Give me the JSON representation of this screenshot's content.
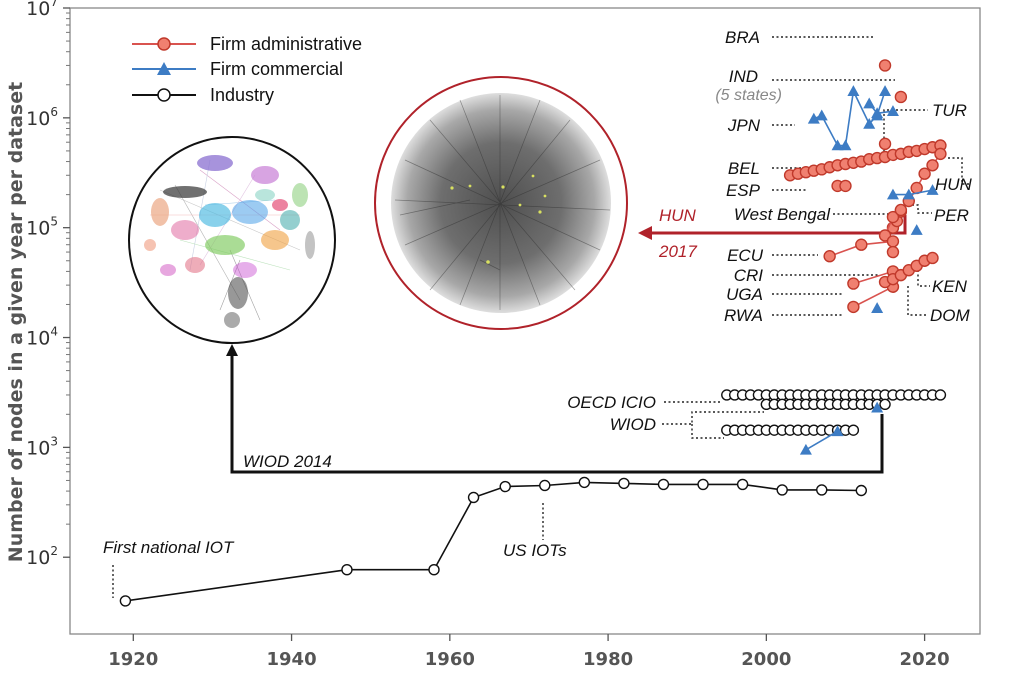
{
  "chart_data": {
    "type": "scatter",
    "title": "",
    "xlabel": "",
    "ylabel": "Number of nodes in a given year per dataset",
    "xlim": [
      1912,
      2027
    ],
    "ylim": [
      20,
      10000000
    ],
    "yscale": "log",
    "x_ticks": [
      1920,
      1940,
      1960,
      1980,
      2000,
      2020
    ],
    "y_ticks": [
      {
        "value": 100,
        "base": "10",
        "exp": "2"
      },
      {
        "value": 1000,
        "base": "10",
        "exp": "3"
      },
      {
        "value": 10000,
        "base": "10",
        "exp": "4"
      },
      {
        "value": 100000,
        "base": "10",
        "exp": "5"
      },
      {
        "value": 1000000,
        "base": "10",
        "exp": "6"
      },
      {
        "value": 10000000,
        "base": "10",
        "exp": "7"
      }
    ],
    "legend": {
      "placement": "top-left",
      "entries": [
        {
          "label": "Firm administrative",
          "marker": "circle",
          "color": "#d9534f",
          "fill": "#f08070"
        },
        {
          "label": "Firm commercial",
          "marker": "triangle",
          "color": "#3d7cc4",
          "fill": "#3d7cc4"
        },
        {
          "label": "Industry",
          "marker": "open-circle",
          "color": "#111111",
          "fill": "#ffffff"
        }
      ]
    },
    "series": [
      {
        "category": "Industry",
        "line": true,
        "points": [
          [
            1919,
            40
          ],
          [
            1947,
            77
          ],
          [
            1958,
            77
          ],
          [
            1963,
            350
          ],
          [
            1967,
            440
          ],
          [
            1972,
            450
          ],
          [
            1977,
            480
          ],
          [
            1982,
            470
          ],
          [
            1987,
            460
          ],
          [
            1992,
            460
          ],
          [
            1997,
            460
          ],
          [
            2002,
            410
          ],
          [
            2007,
            410
          ],
          [
            2012,
            405
          ]
        ]
      },
      {
        "category": "Industry",
        "line": true,
        "points": [
          [
            1995,
            3000
          ],
          [
            1996,
            3000
          ],
          [
            1997,
            3000
          ],
          [
            1998,
            3000
          ],
          [
            1999,
            3000
          ],
          [
            2000,
            3000
          ],
          [
            2001,
            3000
          ],
          [
            2002,
            3000
          ],
          [
            2003,
            3000
          ],
          [
            2004,
            3000
          ],
          [
            2005,
            3000
          ],
          [
            2006,
            3000
          ],
          [
            2007,
            3000
          ],
          [
            2008,
            3000
          ],
          [
            2009,
            3000
          ],
          [
            2010,
            3000
          ],
          [
            2011,
            3000
          ],
          [
            2012,
            3000
          ],
          [
            2013,
            3000
          ],
          [
            2014,
            3000
          ],
          [
            2015,
            3000
          ],
          [
            2016,
            3000
          ],
          [
            2017,
            3000
          ],
          [
            2018,
            3000
          ],
          [
            2019,
            3000
          ],
          [
            2020,
            3000
          ],
          [
            2021,
            3000
          ],
          [
            2022,
            3000
          ]
        ]
      },
      {
        "category": "Industry",
        "line": true,
        "points": [
          [
            2000,
            2464
          ],
          [
            2001,
            2464
          ],
          [
            2002,
            2464
          ],
          [
            2003,
            2464
          ],
          [
            2004,
            2464
          ],
          [
            2005,
            2464
          ],
          [
            2006,
            2464
          ],
          [
            2007,
            2464
          ],
          [
            2008,
            2464
          ],
          [
            2009,
            2464
          ],
          [
            2010,
            2464
          ],
          [
            2011,
            2464
          ],
          [
            2012,
            2464
          ],
          [
            2013,
            2464
          ],
          [
            2014,
            2464
          ],
          [
            2015,
            2464
          ]
        ]
      },
      {
        "category": "Industry",
        "line": true,
        "points": [
          [
            1995,
            1435
          ],
          [
            1996,
            1435
          ],
          [
            1997,
            1435
          ],
          [
            1998,
            1435
          ],
          [
            1999,
            1435
          ],
          [
            2000,
            1435
          ],
          [
            2001,
            1435
          ],
          [
            2002,
            1435
          ],
          [
            2003,
            1435
          ],
          [
            2004,
            1435
          ],
          [
            2005,
            1435
          ],
          [
            2006,
            1435
          ],
          [
            2007,
            1435
          ],
          [
            2008,
            1435
          ],
          [
            2009,
            1435
          ],
          [
            2010,
            1435
          ],
          [
            2011,
            1435
          ]
        ]
      },
      {
        "category": "Firm administrative",
        "line": false,
        "points": [
          [
            2015,
            3000000
          ]
        ]
      },
      {
        "category": "Firm administrative",
        "line": false,
        "points": [
          [
            2017,
            1550000
          ]
        ]
      },
      {
        "category": "Firm administrative",
        "line": true,
        "points": [
          [
            2003,
            300000
          ],
          [
            2004,
            310000
          ],
          [
            2005,
            320000
          ],
          [
            2006,
            330000
          ],
          [
            2007,
            340000
          ],
          [
            2008,
            355000
          ],
          [
            2009,
            370000
          ],
          [
            2010,
            380000
          ],
          [
            2011,
            390000
          ],
          [
            2012,
            400000
          ],
          [
            2013,
            420000
          ],
          [
            2014,
            430000
          ],
          [
            2015,
            440000
          ],
          [
            2016,
            460000
          ],
          [
            2017,
            470000
          ],
          [
            2018,
            490000
          ],
          [
            2019,
            500000
          ],
          [
            2020,
            520000
          ],
          [
            2021,
            540000
          ],
          [
            2022,
            560000
          ]
        ]
      },
      {
        "category": "Firm administrative",
        "line": false,
        "points": [
          [
            2015,
            580000
          ]
        ]
      },
      {
        "category": "Firm administrative",
        "line": true,
        "points": [
          [
            2009,
            240000
          ],
          [
            2010,
            240000
          ]
        ]
      },
      {
        "category": "Firm administrative",
        "line": true,
        "points": [
          [
            2016,
            100000
          ],
          [
            2016.5,
            115000
          ],
          [
            2017,
            140000
          ],
          [
            2018,
            175000
          ],
          [
            2019,
            230000
          ],
          [
            2020,
            310000
          ],
          [
            2021,
            370000
          ],
          [
            2022,
            470000
          ]
        ]
      },
      {
        "category": "Firm administrative",
        "line": true,
        "points": [
          [
            2015,
            85000
          ],
          [
            2016,
            125000
          ],
          [
            2017,
            145000
          ]
        ]
      },
      {
        "category": "Firm administrative",
        "line": true,
        "points": [
          [
            2008,
            55000
          ],
          [
            2012,
            70000
          ],
          [
            2016,
            75000
          ]
        ]
      },
      {
        "category": "Firm administrative",
        "line": false,
        "points": [
          [
            2016,
            60000
          ]
        ]
      },
      {
        "category": "Firm administrative",
        "line": true,
        "points": [
          [
            2011,
            31000
          ],
          [
            2016,
            40000
          ]
        ]
      },
      {
        "category": "Firm administrative",
        "line": true,
        "points": [
          [
            2011,
            19000
          ],
          [
            2016,
            29000
          ]
        ]
      },
      {
        "category": "Firm administrative",
        "line": true,
        "points": [
          [
            2015,
            32000
          ],
          [
            2016,
            34000
          ],
          [
            2017,
            37000
          ],
          [
            2018,
            41000
          ],
          [
            2019,
            45000
          ],
          [
            2020,
            50000
          ],
          [
            2021,
            53000
          ]
        ]
      },
      {
        "category": "Firm commercial",
        "line": true,
        "points": [
          [
            2006,
            980000
          ],
          [
            2007,
            1050000
          ],
          [
            2009,
            560000
          ],
          [
            2010,
            560000
          ],
          [
            2011,
            1750000
          ],
          [
            2013,
            880000
          ],
          [
            2014,
            1050000
          ],
          [
            2015,
            1750000
          ]
        ]
      },
      {
        "category": "Firm commercial",
        "line": true,
        "points": [
          [
            2013,
            1350000
          ],
          [
            2014,
            1100000
          ],
          [
            2016,
            1150000
          ]
        ]
      },
      {
        "category": "Firm commercial",
        "line": true,
        "points": [
          [
            2016,
            200000
          ],
          [
            2018,
            200000
          ],
          [
            2021,
            220000
          ]
        ]
      },
      {
        "category": "Firm commercial",
        "line": false,
        "points": [
          [
            2019,
            95000
          ]
        ]
      },
      {
        "category": "Firm commercial",
        "line": false,
        "points": [
          [
            2014,
            18500
          ]
        ]
      },
      {
        "category": "Firm commercial",
        "line": false,
        "points": [
          [
            2014,
            2300
          ]
        ]
      },
      {
        "category": "Firm commercial",
        "line": true,
        "points": [
          [
            2005,
            950
          ],
          [
            2009,
            1400
          ]
        ]
      }
    ],
    "annotations": [
      {
        "text": "BRA",
        "x": 2015,
        "y": 3000000
      },
      {
        "text": "IND",
        "x": 2017,
        "y": 1550000
      },
      {
        "text": "(5 states)",
        "style": "grey"
      },
      {
        "text": "JPN",
        "x": 2006,
        "y": 980000
      },
      {
        "text": "TUR",
        "x": 2015,
        "y": 1750000
      },
      {
        "text": "BEL",
        "x": 2003,
        "y": 300000
      },
      {
        "text": "ESP",
        "x": 2009,
        "y": 240000
      },
      {
        "text": "HUN",
        "x": 2022,
        "y": 470000
      },
      {
        "text": "West Bengal",
        "x": 2016,
        "y": 140000
      },
      {
        "text": "PER",
        "x": 2018,
        "y": 200000
      },
      {
        "text": "ECU",
        "x": 2008,
        "y": 55000
      },
      {
        "text": "CRI",
        "x": 2016,
        "y": 75000
      },
      {
        "text": "UGA",
        "x": 2011,
        "y": 31000
      },
      {
        "text": "RWA",
        "x": 2011,
        "y": 19000
      },
      {
        "text": "KEN",
        "x": 2018,
        "y": 41000
      },
      {
        "text": "DOM",
        "x": 2017,
        "y": 37000
      },
      {
        "text": "OECD ICIO",
        "x": 1995,
        "y": 3000
      },
      {
        "text": "WIOD",
        "x": 2000,
        "y": 2464
      },
      {
        "text": "First national IOT",
        "x": 1919,
        "y": 40
      },
      {
        "text": "US IOTs",
        "x": 1972,
        "y": 450
      },
      {
        "text": "WIOD 2014",
        "x": 2014,
        "y": 2464
      },
      {
        "text": "HUN",
        "style": "red"
      },
      {
        "text": "2017",
        "style": "red"
      }
    ]
  }
}
